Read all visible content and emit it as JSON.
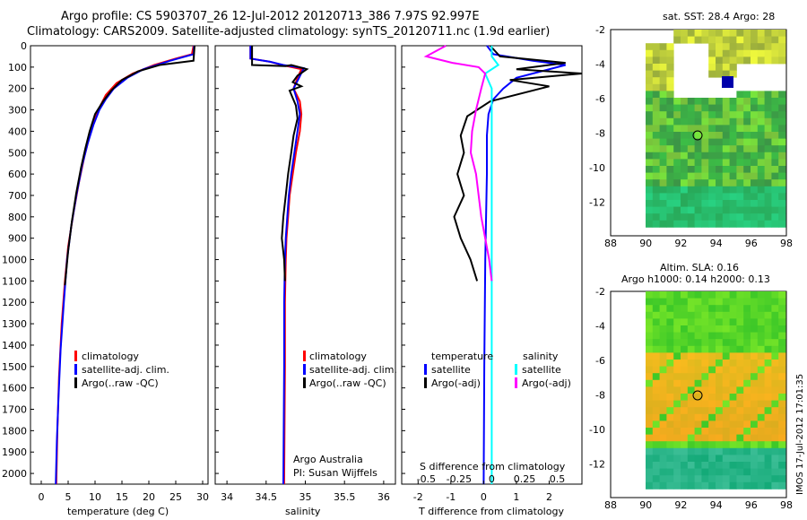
{
  "header": {
    "line1": "Argo profile: CS 5903707_26 12-Jul-2012 20120713_386 7.97S 92.997E",
    "line2": "Climatology: CARS2009. Satellite-adjusted climatology: synTS_20120711.nc (1.9d earlier)"
  },
  "colors": {
    "climatology": "#ff0000",
    "satellite": "#0000ff",
    "argo": "#000000",
    "sat_salt": "#00ffff",
    "argo_salt": "#ff00ff"
  },
  "depth_ticks": [
    "0",
    "100",
    "200",
    "300",
    "400",
    "500",
    "600",
    "700",
    "800",
    "900",
    "1000",
    "1100",
    "1200",
    "1300",
    "1400",
    "1500",
    "1600",
    "1700",
    "1800",
    "1900",
    "2000"
  ],
  "panels": {
    "temperature": {
      "xlabel": "temperature (deg C)",
      "xticks": [
        "0",
        "5",
        "10",
        "15",
        "20",
        "25",
        "30"
      ],
      "legend": [
        "climatology",
        "satellite-adj. clim.",
        "Argo(..raw -QC)"
      ]
    },
    "salinity": {
      "xlabel": "salinity",
      "xticks": [
        "34",
        "34.5",
        "35",
        "35.5",
        "36"
      ],
      "legend": [
        "climatology",
        "satellite-adj. clim.",
        "Argo(..raw -QC)"
      ],
      "credit1": "Argo Australia",
      "credit2": "PI: Susan Wijffels"
    },
    "difference": {
      "xlabel": "T difference from climatology",
      "s_label": "S difference from climatology",
      "t_ticks": [
        "-2",
        "-1",
        "0",
        "1",
        "2"
      ],
      "s_ticks": [
        "-0.5",
        "-0.25",
        "0",
        "0.25",
        "0.5"
      ],
      "legend_head_t": "temperature",
      "legend_head_s": "salinity",
      "legend_t": [
        "satellite",
        "Argo(-adj)"
      ],
      "legend_s": [
        "satellite",
        "Argo(-adj)"
      ]
    }
  },
  "maps": {
    "sst": {
      "title": "sat. SST: 28.4  Argo: 28"
    },
    "sla": {
      "title1": "Altim. SLA: 0.16",
      "title2": "Argo h1000: 0.14 h2000: 0.13"
    },
    "xticks": [
      "88",
      "90",
      "92",
      "94",
      "96",
      "98"
    ],
    "yticks": [
      "-2",
      "-4",
      "-6",
      "-8",
      "-10",
      "-12"
    ],
    "stamp": "IMOS 17-Jul-2012 17:01:35"
  },
  "chart_data": [
    {
      "type": "line",
      "title": "",
      "xlabel": "temperature (deg C)",
      "ylabel": "",
      "xlim": [
        -2,
        31
      ],
      "ylim": [
        2050,
        0
      ],
      "series": [
        {
          "name": "climatology",
          "points": [
            [
              28.3,
              0
            ],
            [
              28,
              40
            ],
            [
              25,
              60
            ],
            [
              21,
              90
            ],
            [
              17,
              130
            ],
            [
              14,
              175
            ],
            [
              12,
              230
            ],
            [
              11,
              280
            ],
            [
              10,
              340
            ],
            [
              9,
              420
            ],
            [
              8,
              520
            ],
            [
              7,
              640
            ],
            [
              6,
              780
            ],
            [
              5,
              940
            ],
            [
              4.4,
              1100
            ],
            [
              3.8,
              1300
            ],
            [
              3.3,
              1550
            ],
            [
              3,
              1800
            ],
            [
              2.8,
              2050
            ]
          ]
        },
        {
          "name": "satellite-adj. clim.",
          "points": [
            [
              28.4,
              0
            ],
            [
              28.3,
              40
            ],
            [
              24,
              70
            ],
            [
              19,
              110
            ],
            [
              16,
              150
            ],
            [
              13.5,
              200
            ],
            [
              12,
              250
            ],
            [
              10.8,
              300
            ],
            [
              9.7,
              370
            ],
            [
              8.6,
              460
            ],
            [
              7.6,
              560
            ],
            [
              6.6,
              690
            ],
            [
              5.6,
              840
            ],
            [
              4.8,
              1000
            ],
            [
              4.2,
              1200
            ],
            [
              3.6,
              1420
            ],
            [
              3.2,
              1650
            ],
            [
              2.9,
              1850
            ],
            [
              2.7,
              2050
            ]
          ]
        },
        {
          "name": "Argo(..raw -QC)",
          "points": [
            [
              28.5,
              0
            ],
            [
              28.3,
              70
            ],
            [
              22,
              90
            ],
            [
              18,
              120
            ],
            [
              15,
              160
            ],
            [
              13,
              210
            ],
            [
              11.5,
              260
            ],
            [
              10,
              320
            ],
            [
              9,
              400
            ],
            [
              8.2,
              480
            ],
            [
              7.4,
              570
            ],
            [
              6.5,
              690
            ],
            [
              5.7,
              820
            ],
            [
              5,
              960
            ],
            [
              4.4,
              1120
            ]
          ]
        }
      ]
    },
    {
      "type": "line",
      "title": "",
      "xlabel": "salinity",
      "ylabel": "",
      "xlim": [
        33.85,
        36.15
      ],
      "ylim": [
        2050,
        0
      ],
      "series": [
        {
          "name": "climatology",
          "points": [
            [
              34.3,
              0
            ],
            [
              34.3,
              60
            ],
            [
              34.55,
              75
            ],
            [
              34.7,
              90
            ],
            [
              34.95,
              110
            ],
            [
              34.9,
              150
            ],
            [
              34.85,
              200
            ],
            [
              34.93,
              260
            ],
            [
              34.95,
              320
            ],
            [
              34.93,
              400
            ],
            [
              34.88,
              500
            ],
            [
              34.84,
              600
            ],
            [
              34.8,
              700
            ],
            [
              34.78,
              800
            ],
            [
              34.76,
              900
            ],
            [
              34.75,
              1000
            ],
            [
              34.74,
              1200
            ],
            [
              34.74,
              1500
            ],
            [
              34.73,
              2050
            ]
          ]
        },
        {
          "name": "satellite-adj. clim.",
          "points": [
            [
              34.3,
              0
            ],
            [
              34.3,
              60
            ],
            [
              34.55,
              75
            ],
            [
              34.72,
              90
            ],
            [
              34.98,
              105
            ],
            [
              34.92,
              150
            ],
            [
              34.85,
              200
            ],
            [
              34.9,
              260
            ],
            [
              34.93,
              320
            ],
            [
              34.9,
              400
            ],
            [
              34.86,
              500
            ],
            [
              34.82,
              600
            ],
            [
              34.79,
              700
            ],
            [
              34.77,
              800
            ],
            [
              34.75,
              900
            ],
            [
              34.74,
              1000
            ],
            [
              34.73,
              1200
            ],
            [
              34.73,
              1500
            ],
            [
              34.72,
              2050
            ]
          ]
        },
        {
          "name": "Argo(..raw -QC)",
          "points": [
            [
              34.32,
              0
            ],
            [
              34.32,
              90
            ],
            [
              34.75,
              95
            ],
            [
              34.82,
              90
            ],
            [
              35.02,
              110
            ],
            [
              34.9,
              140
            ],
            [
              34.84,
              170
            ],
            [
              34.95,
              190
            ],
            [
              34.8,
              210
            ],
            [
              34.88,
              280
            ],
            [
              34.9,
              340
            ],
            [
              34.85,
              420
            ],
            [
              34.82,
              500
            ],
            [
              34.78,
              600
            ],
            [
              34.75,
              700
            ],
            [
              34.72,
              800
            ],
            [
              34.7,
              900
            ],
            [
              34.73,
              1000
            ],
            [
              34.74,
              1100
            ]
          ]
        }
      ]
    },
    {
      "type": "line",
      "title": "",
      "xlabel": "T difference from climatology",
      "ylabel": "",
      "xlim": [
        -2.5,
        3
      ],
      "ylim": [
        2050,
        0
      ],
      "series": [
        {
          "name": "temperature satellite",
          "points": [
            [
              0.1,
              0
            ],
            [
              0.3,
              40
            ],
            [
              1.5,
              70
            ],
            [
              2.5,
              90
            ],
            [
              1,
              150
            ],
            [
              0.6,
              200
            ],
            [
              0.3,
              250
            ],
            [
              0.15,
              320
            ],
            [
              0.1,
              420
            ],
            [
              0.1,
              600
            ],
            [
              0.05,
              1000
            ],
            [
              0.02,
              1500
            ],
            [
              0,
              2050
            ]
          ]
        },
        {
          "name": "temperature Argo(-adj)",
          "points": [
            [
              0.2,
              0
            ],
            [
              0.5,
              50
            ],
            [
              2.5,
              80
            ],
            [
              1,
              110
            ],
            [
              3,
              130
            ],
            [
              0.8,
              160
            ],
            [
              2,
              190
            ],
            [
              0.2,
              260
            ],
            [
              -0.5,
              330
            ],
            [
              -0.7,
              420
            ],
            [
              -0.6,
              500
            ],
            [
              -0.8,
              600
            ],
            [
              -0.6,
              700
            ],
            [
              -0.9,
              800
            ],
            [
              -0.7,
              900
            ],
            [
              -0.4,
              1000
            ],
            [
              -0.2,
              1100
            ]
          ]
        },
        {
          "name": "salinity satellite",
          "points": [
            [
              0,
              0
            ],
            [
              0,
              50
            ],
            [
              0.05,
              90
            ],
            [
              -0.05,
              130
            ],
            [
              0,
              200
            ],
            [
              0,
              300
            ],
            [
              0,
              600
            ],
            [
              0,
              1000
            ],
            [
              0,
              2050
            ]
          ]
        },
        {
          "name": "salinity Argo(-adj)",
          "points": [
            [
              -0.35,
              0
            ],
            [
              -0.5,
              50
            ],
            [
              -0.3,
              80
            ],
            [
              -0.1,
              100
            ],
            [
              -0.05,
              130
            ],
            [
              -0.08,
              200
            ],
            [
              -0.12,
              300
            ],
            [
              -0.15,
              400
            ],
            [
              -0.16,
              500
            ],
            [
              -0.12,
              600
            ],
            [
              -0.1,
              700
            ],
            [
              -0.08,
              800
            ],
            [
              -0.05,
              900
            ],
            [
              -0.02,
              1000
            ],
            [
              0,
              1100
            ]
          ]
        }
      ]
    }
  ]
}
